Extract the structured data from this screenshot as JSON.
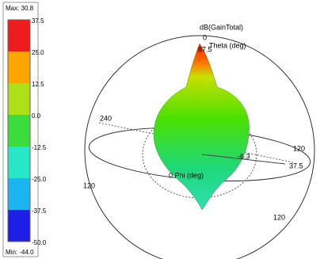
{
  "legend": {
    "max": "Max: 30.8",
    "min": "Min: -44.0",
    "levels": [
      "37.5",
      "25.0",
      "12.5",
      "0.0",
      "-12.5",
      "-25.0",
      "-37.5",
      "-50.0"
    ]
  },
  "plot": {
    "quantity": "dB(GainTotal)",
    "theta_axis": "Theta (deg)",
    "phi_axis": "0 Phi (deg)",
    "labels": [
      "0",
      "87.5",
      "240",
      "120",
      "-6.3",
      "37.5",
      "120",
      "120"
    ]
  }
}
